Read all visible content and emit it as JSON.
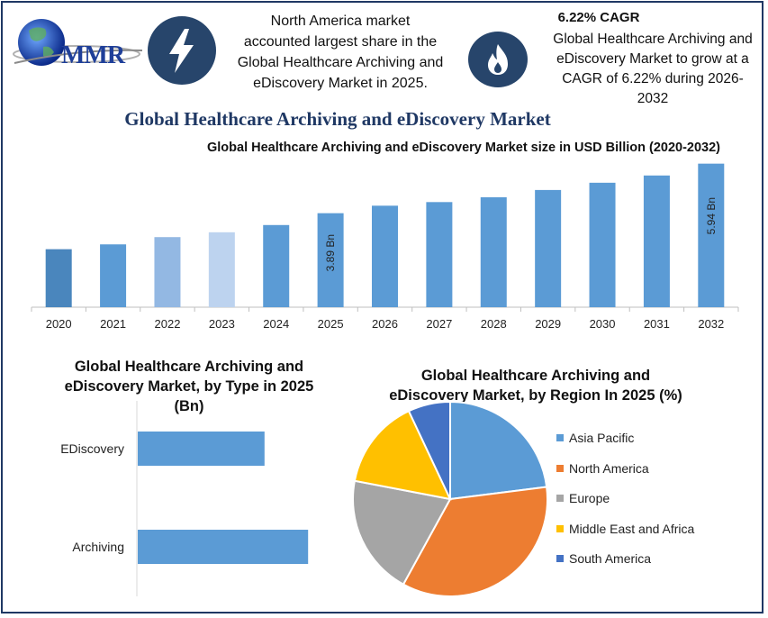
{
  "header": {
    "logo_text": "MMR",
    "info_left": [
      "North America market",
      "accounted largest share in the",
      "Global Healthcare Archiving and",
      "eDiscovery Market in 2025."
    ],
    "cagr_title": "6.22% CAGR",
    "info_right": [
      "Global Healthcare Archiving and",
      "eDiscovery Market to grow at a",
      "CAGR of 6.22% during 2026-",
      "2032"
    ],
    "icons": {
      "left": "lightning-bolt-icon",
      "right": "flame-icon"
    }
  },
  "main_title": "Global Healthcare Archiving and eDiscovery Market",
  "colors": {
    "accent": "#5b9bd5",
    "navy": "#1f3864",
    "icon_bg": "#27456b"
  },
  "chart_data": [
    {
      "type": "bar",
      "title": "Global Healthcare Archiving and eDiscovery Market size in USD Billion (2020-2032)",
      "categories": [
        "2020",
        "2021",
        "2022",
        "2023",
        "2024",
        "2025",
        "2026",
        "2027",
        "2028",
        "2029",
        "2030",
        "2031",
        "2032"
      ],
      "values": [
        2.4,
        2.6,
        2.9,
        3.1,
        3.4,
        3.89,
        4.2,
        4.35,
        4.55,
        4.85,
        5.15,
        5.45,
        5.94
      ],
      "colors": [
        "#4a86bd",
        "#5b9bd5",
        "#93b8e3",
        "#bdd3ef",
        "#5b9bd5",
        "#5b9bd5",
        "#5b9bd5",
        "#5b9bd5",
        "#5b9bd5",
        "#5b9bd5",
        "#5b9bd5",
        "#5b9bd5",
        "#5b9bd5"
      ],
      "data_labels": {
        "2025": "3.89 Bn",
        "2032": "5.94 Bn"
      },
      "ylim": [
        0,
        6.3
      ],
      "grid": false
    },
    {
      "type": "bar",
      "orientation": "horizontal",
      "title": "Global Healthcare Archiving and eDiscovery Market, by Type in 2025 (Bn)",
      "title_lines": [
        "Global Healthcare Archiving and",
        "eDiscovery Market, by Type in 2025",
        "(Bn)"
      ],
      "categories": [
        "EDiscovery",
        "Archiving"
      ],
      "values": [
        1.6,
        2.15
      ],
      "xlim": [
        0,
        2.5
      ],
      "color": "#5b9bd5"
    },
    {
      "type": "pie",
      "title": "Global Healthcare Archiving and eDiscovery Market, by Region In 2025 (%)",
      "title_lines": [
        "Global Healthcare Archiving and",
        "eDiscovery Market, by Region In 2025 (%)"
      ],
      "categories": [
        "Asia Pacific",
        "North America",
        "Europe",
        "Middle East and Africa",
        "South America"
      ],
      "values": [
        23,
        35,
        20,
        15,
        7
      ],
      "colors": [
        "#5b9bd5",
        "#ed7d31",
        "#a5a5a5",
        "#ffc000",
        "#4472c4"
      ],
      "legend": "right"
    }
  ]
}
